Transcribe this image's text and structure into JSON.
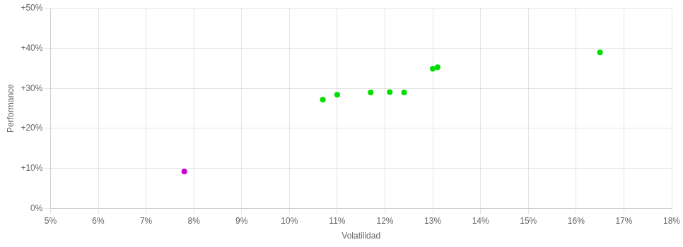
{
  "chart_data": {
    "type": "scatter",
    "xlabel": "Volatilidad",
    "ylabel": "Performance",
    "xlim": [
      0.05,
      0.18
    ],
    "ylim": [
      0.0,
      0.5
    ],
    "xticks": [
      {
        "value": 0.05,
        "label": "5%"
      },
      {
        "value": 0.06,
        "label": "6%"
      },
      {
        "value": 0.07,
        "label": "7%"
      },
      {
        "value": 0.08,
        "label": "8%"
      },
      {
        "value": 0.09,
        "label": "9%"
      },
      {
        "value": 0.1,
        "label": "10%"
      },
      {
        "value": 0.11,
        "label": "11%"
      },
      {
        "value": 0.12,
        "label": "12%"
      },
      {
        "value": 0.13,
        "label": "13%"
      },
      {
        "value": 0.14,
        "label": "14%"
      },
      {
        "value": 0.15,
        "label": "15%"
      },
      {
        "value": 0.16,
        "label": "16%"
      },
      {
        "value": 0.17,
        "label": "17%"
      },
      {
        "value": 0.18,
        "label": "18%"
      }
    ],
    "yticks": [
      {
        "value": 0.0,
        "label": "0%"
      },
      {
        "value": 0.1,
        "label": "+10%"
      },
      {
        "value": 0.2,
        "label": "+20%"
      },
      {
        "value": 0.3,
        "label": "+30%"
      },
      {
        "value": 0.4,
        "label": "+40%"
      },
      {
        "value": 0.5,
        "label": "+50%"
      }
    ],
    "grid": true,
    "series": [
      {
        "color": "#00dd00",
        "x": [
          0.107,
          0.11,
          0.117,
          0.121,
          0.124,
          0.13,
          0.131,
          0.165
        ],
        "values": [
          0.272,
          0.284,
          0.29,
          0.291,
          0.29,
          0.349,
          0.353,
          0.39
        ]
      },
      {
        "color": "#cc00cc",
        "x": [
          0.078
        ],
        "values": [
          0.092
        ]
      }
    ]
  }
}
